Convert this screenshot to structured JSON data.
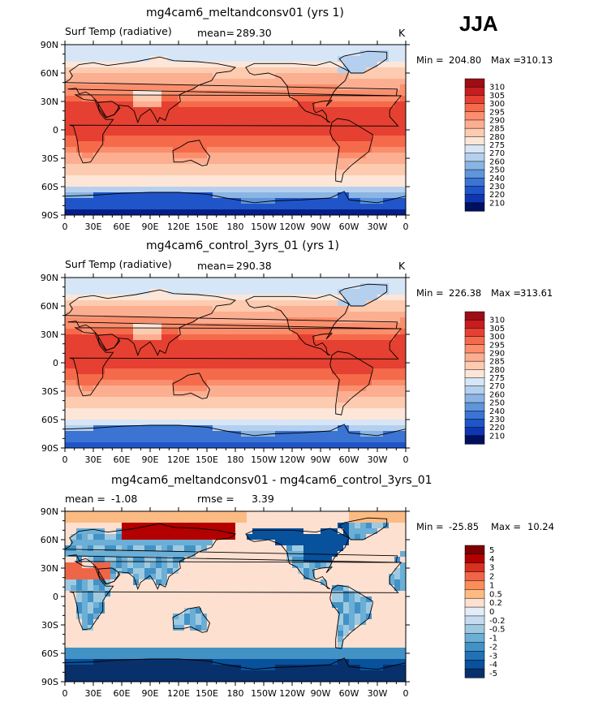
{
  "header": {
    "season": "JJA"
  },
  "colors": {
    "warm": [
      "#fde6d8",
      "#fdcbb0",
      "#fcae91",
      "#fb8e6c",
      "#f56a4a",
      "#e54031",
      "#c81c1f",
      "#9d0d14"
    ],
    "cool": [
      "#d6e6f6",
      "#b5d0ee",
      "#8ab4e3",
      "#5f95d9",
      "#3b74d3",
      "#1f55c9",
      "#0f36b2",
      "#061d88",
      "#000f5e"
    ],
    "diff": [
      "#7f0000",
      "#b30000",
      "#d7301f",
      "#ef6548",
      "#fc8d59",
      "#fdbb84",
      "#fee0d0",
      "#e3ecf7",
      "#c6dbef",
      "#9ecae1",
      "#6baed6",
      "#4292c6",
      "#2171b5",
      "#08519c",
      "#08306b"
    ]
  },
  "chart_data": [
    {
      "type": "heatmap",
      "title": "mg4cam6_meltandconsv01 (yrs 1)",
      "field_label": "Surf Temp (radiative)",
      "mean_label": "mean=",
      "mean_value": "289.30",
      "units": "K",
      "min_label": "Min =",
      "min_value": "204.80",
      "max_label": "Max =",
      "max_value": "310.13",
      "lat_ticks": [
        "90N",
        "60N",
        "30N",
        "0",
        "30S",
        "60S",
        "90S"
      ],
      "lon_ticks": [
        "0",
        "30E",
        "60E",
        "90E",
        "120E",
        "150E",
        "180",
        "150W",
        "120W",
        "90W",
        "60W",
        "30W",
        "0"
      ],
      "colorbar_levels": [
        "310",
        "305",
        "300",
        "295",
        "290",
        "285",
        "280",
        "275",
        "270",
        "260",
        "250",
        "240",
        "230",
        "220",
        "210"
      ]
    },
    {
      "type": "heatmap",
      "title": "mg4cam6_control_3yrs_01 (yrs 1)",
      "field_label": "Surf Temp (radiative)",
      "mean_label": "mean=",
      "mean_value": "290.38",
      "units": "K",
      "min_label": "Min =",
      "min_value": "226.38",
      "max_label": "Max =",
      "max_value": "313.61",
      "lat_ticks": [
        "90N",
        "60N",
        "30N",
        "0",
        "30S",
        "60S",
        "90S"
      ],
      "lon_ticks": [
        "0",
        "30E",
        "60E",
        "90E",
        "120E",
        "150E",
        "180",
        "150W",
        "120W",
        "90W",
        "60W",
        "30W",
        "0"
      ],
      "colorbar_levels": [
        "310",
        "305",
        "300",
        "295",
        "290",
        "285",
        "280",
        "275",
        "270",
        "260",
        "250",
        "240",
        "230",
        "220",
        "210"
      ]
    },
    {
      "type": "heatmap",
      "title": "mg4cam6_meltandconsv01 - mg4cam6_control_3yrs_01",
      "mean_label": "mean =",
      "mean_value": "-1.08",
      "rmse_label": "rmse =",
      "rmse_value": "3.39",
      "min_label": "Min =",
      "min_value": "-25.85",
      "max_label": "Max =",
      "max_value": "10.24",
      "lat_ticks": [
        "90N",
        "60N",
        "30N",
        "0",
        "30S",
        "60S",
        "90S"
      ],
      "lon_ticks": [
        "0",
        "30E",
        "60E",
        "90E",
        "120E",
        "150E",
        "180",
        "150W",
        "120W",
        "90W",
        "60W",
        "30W",
        "0"
      ],
      "colorbar_levels": [
        "5",
        "4",
        "3",
        "2",
        "1",
        "0.5",
        "0.2",
        "0",
        "-0.2",
        "-0.5",
        "-1",
        "-2",
        "-3",
        "-4",
        "-5"
      ]
    }
  ]
}
